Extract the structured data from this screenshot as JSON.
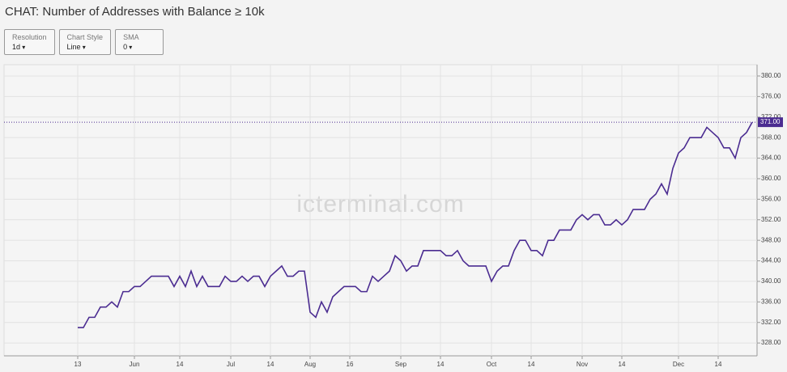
{
  "header": {
    "title": "CHAT: Number of Addresses with Balance ≥ 10k"
  },
  "controls": [
    {
      "label": "Resolution",
      "value": "1d"
    },
    {
      "label": "Chart Style",
      "value": "Line"
    },
    {
      "label": "SMA",
      "value": "0"
    }
  ],
  "watermark": "icterminal.com",
  "chart_data": {
    "type": "line",
    "categories": [
      "13",
      null,
      null,
      null,
      null,
      null,
      null,
      null,
      null,
      null,
      "Jun",
      null,
      null,
      null,
      null,
      null,
      null,
      null,
      "14",
      null,
      null,
      null,
      null,
      null,
      null,
      null,
      null,
      "Jul",
      null,
      null,
      null,
      null,
      null,
      null,
      "14",
      null,
      null,
      null,
      null,
      null,
      null,
      "Aug",
      null,
      null,
      null,
      null,
      null,
      null,
      "16",
      null,
      null,
      null,
      null,
      null,
      null,
      null,
      null,
      "Sep",
      null,
      null,
      null,
      null,
      null,
      null,
      "14",
      null,
      null,
      null,
      null,
      null,
      null,
      null,
      null,
      "Oct",
      null,
      null,
      null,
      null,
      null,
      null,
      "14",
      null,
      null,
      null,
      null,
      null,
      null,
      null,
      null,
      "Nov",
      null,
      null,
      null,
      null,
      null,
      null,
      "14",
      null,
      null,
      null,
      null,
      null,
      null,
      null,
      null,
      null,
      "Dec",
      null,
      null,
      null,
      null,
      null,
      null,
      "14",
      null,
      null,
      null,
      null,
      null,
      null
    ],
    "series": [
      {
        "color": "#4b2c91",
        "values": [
          331,
          331,
          333,
          333,
          335,
          335,
          336,
          335,
          338,
          338,
          339,
          339,
          340,
          341,
          341,
          341,
          341,
          339,
          341,
          339,
          342,
          339,
          341,
          339,
          339,
          339,
          341,
          340,
          340,
          341,
          340,
          341,
          341,
          339,
          341,
          342,
          343,
          341,
          341,
          342,
          342,
          334,
          333,
          336,
          334,
          337,
          338,
          339,
          339,
          339,
          338,
          338,
          341,
          340,
          341,
          342,
          345,
          344,
          342,
          343,
          343,
          346,
          346,
          346,
          346,
          345,
          345,
          346,
          344,
          343,
          343,
          343,
          343,
          340,
          342,
          343,
          343,
          346,
          348,
          348,
          346,
          346,
          345,
          348,
          348,
          350,
          350,
          350,
          352,
          353,
          352,
          353,
          353,
          351,
          351,
          352,
          351,
          352,
          354,
          354,
          354,
          356,
          357,
          359,
          357,
          362,
          365,
          366,
          368,
          368,
          368,
          370,
          369,
          368,
          366,
          366,
          364,
          368,
          369,
          371
        ]
      }
    ],
    "last_value_label": "371.00",
    "ylim": [
      325.5,
      382.2
    ],
    "yticks": [
      {
        "value": 328,
        "label": "328.00"
      },
      {
        "value": 332,
        "label": "332.00"
      },
      {
        "value": 336,
        "label": "336.00"
      },
      {
        "value": 340,
        "label": "340.00"
      },
      {
        "value": 344,
        "label": "344.00"
      },
      {
        "value": 348,
        "label": "348.00"
      },
      {
        "value": 352,
        "label": "352.00"
      },
      {
        "value": 356,
        "label": "356.00"
      },
      {
        "value": 360,
        "label": "360.00"
      },
      {
        "value": 364,
        "label": "364.00"
      },
      {
        "value": 368,
        "label": "368.00"
      },
      {
        "value": 372,
        "label": "372.00"
      },
      {
        "value": 376,
        "label": "376.00"
      },
      {
        "value": 380,
        "label": "380.00"
      }
    ],
    "grid": true
  }
}
